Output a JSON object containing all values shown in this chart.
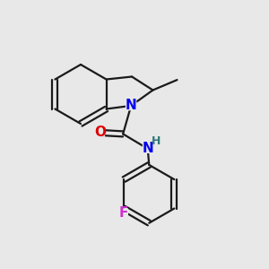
{
  "background_color": "#e8e8e8",
  "bond_color": "#1a1a1a",
  "bond_width": 1.6,
  "double_sep": 0.1,
  "atom_colors": {
    "N": "#0000ee",
    "O": "#dd0000",
    "F": "#cc33cc",
    "H": "#337777",
    "C": "#1a1a1a"
  },
  "font_size_atom": 11,
  "font_size_h": 9,
  "font_size_methyl": 9
}
